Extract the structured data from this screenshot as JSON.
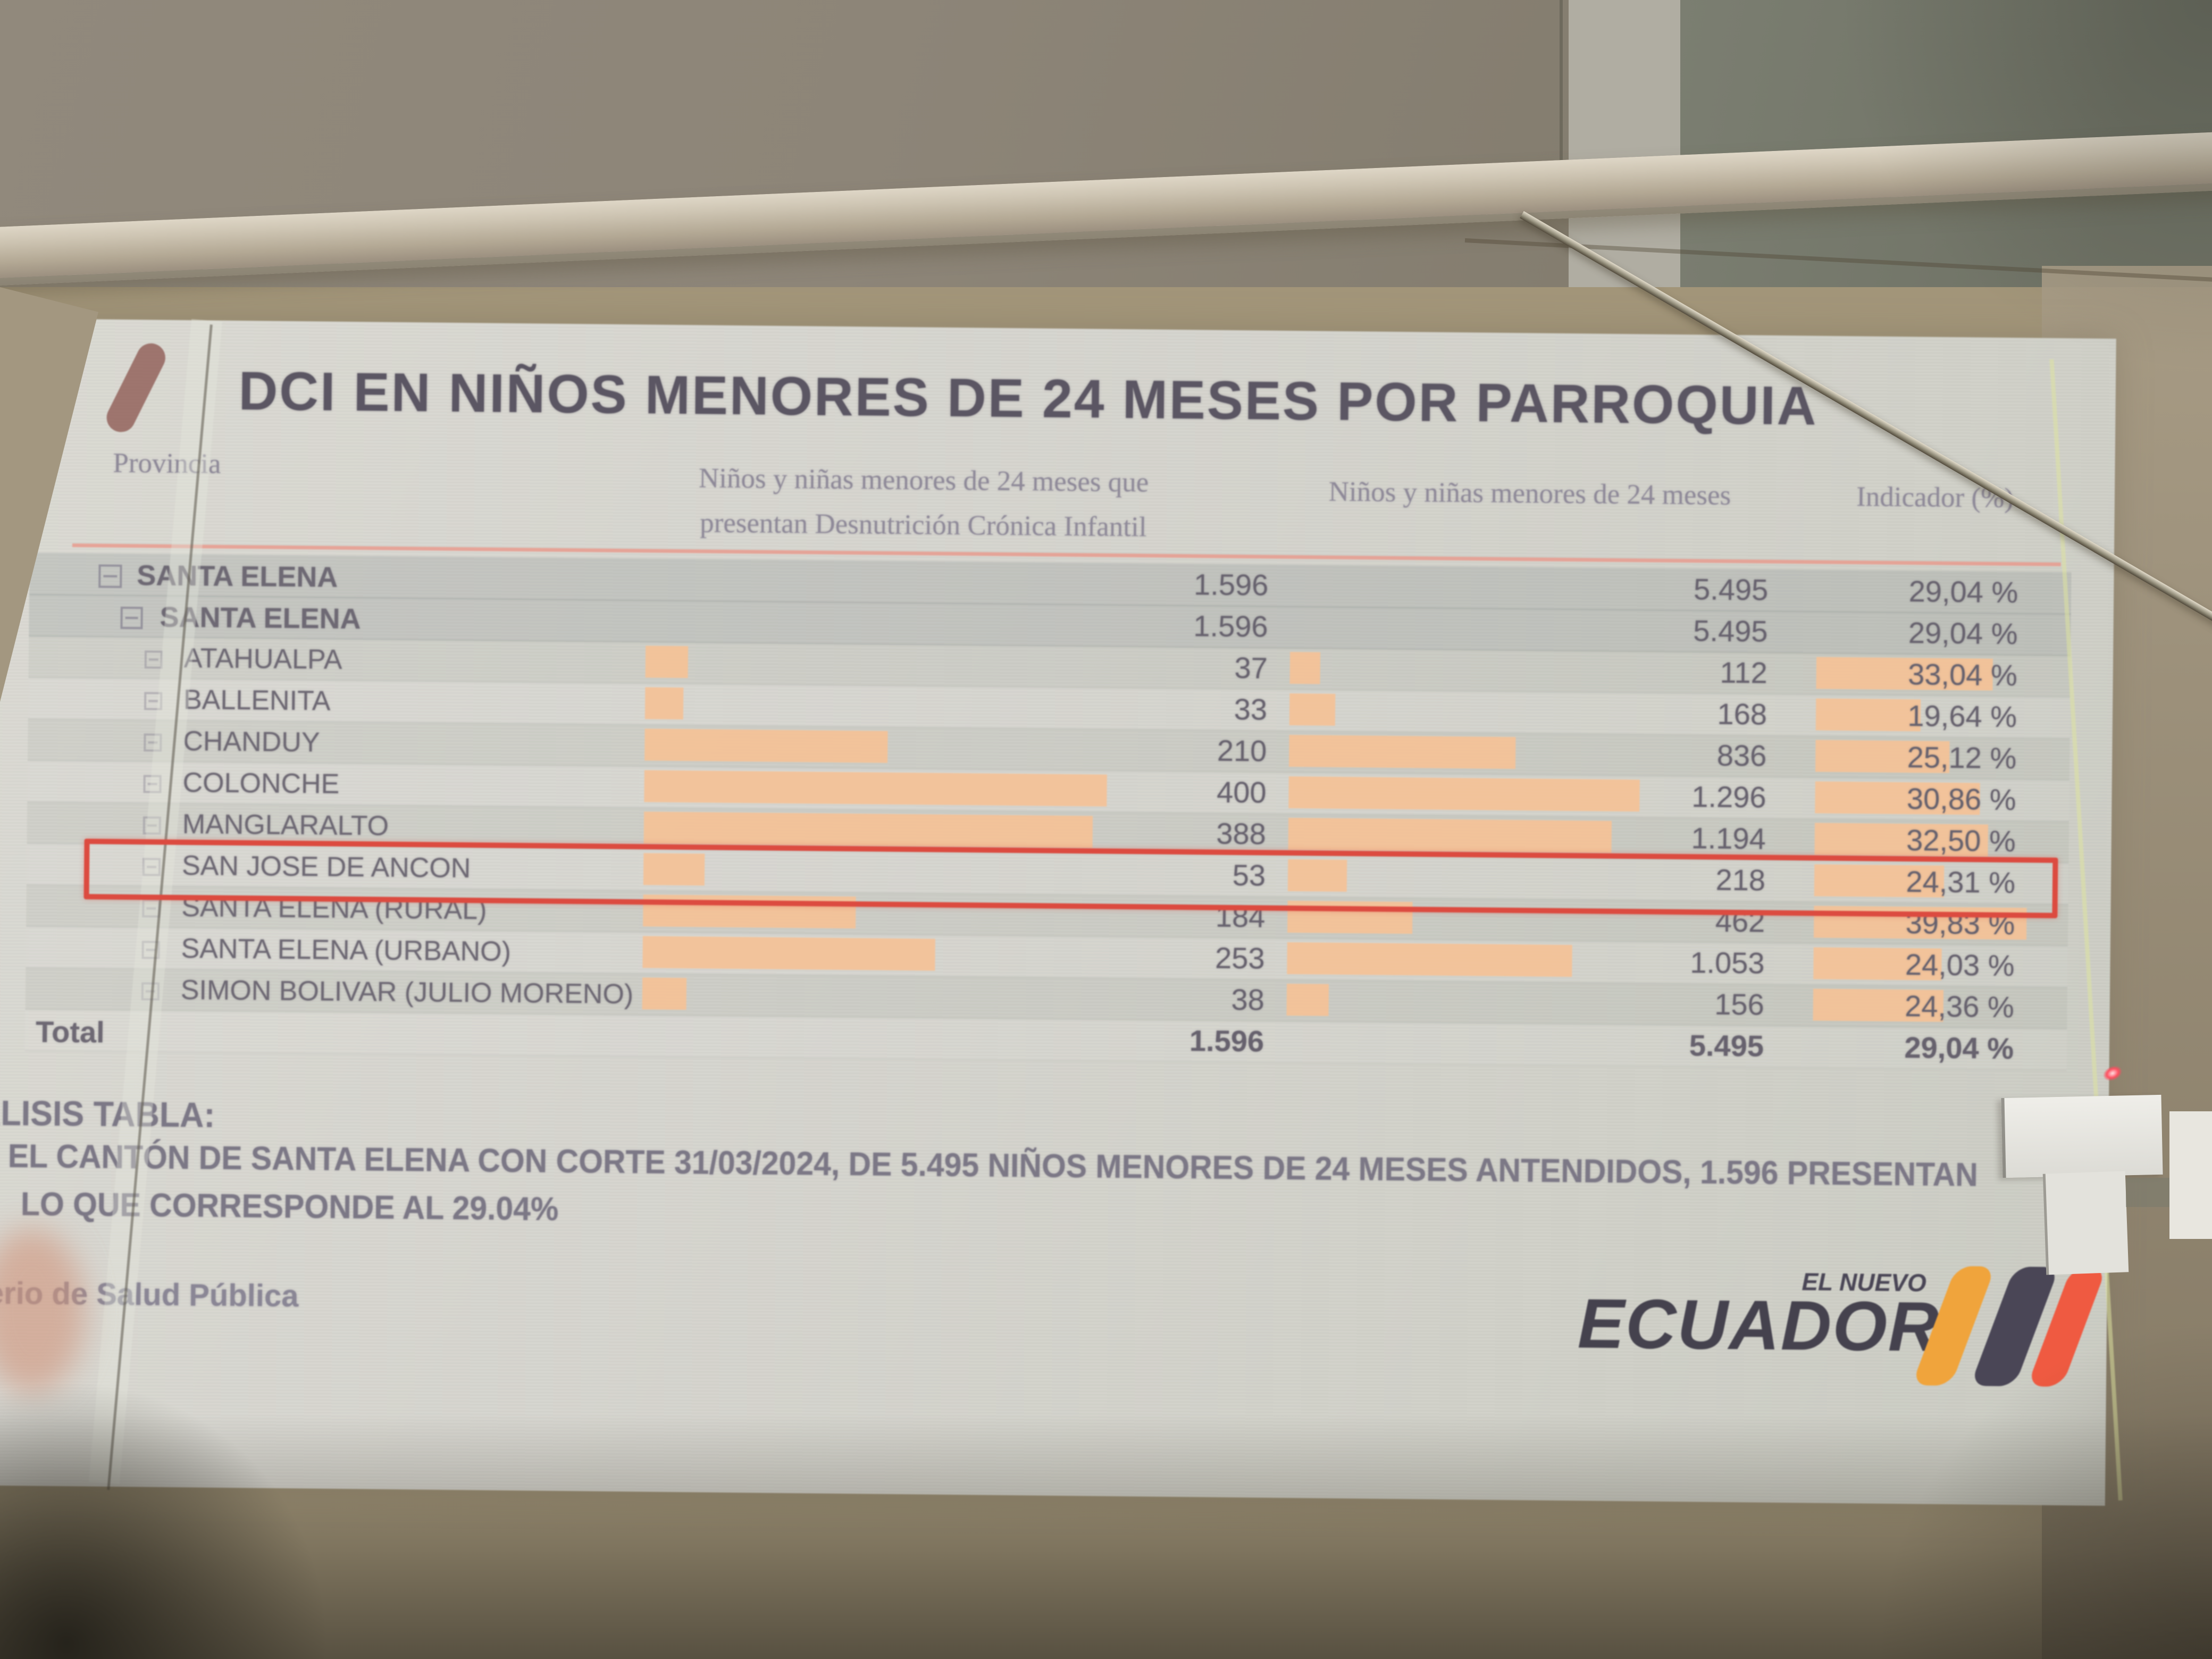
{
  "slide": {
    "title": "DCI EN NIÑOS MENORES DE 24 MESES POR PARROQUIA",
    "table": {
      "headers": {
        "provincia": "Provincia",
        "dci_line1": "Niños y niñas menores de 24 meses que",
        "dci_line2": "presentan Desnutrición Crónica Infantil",
        "atendidos": "Niños y niñas menores de 24 meses",
        "indicador": "Indicador (%)"
      },
      "rows": [
        {
          "label": "SANTA ELENA",
          "level": 1,
          "dci": "1.596",
          "dci_val": 1596,
          "atendidos": "5.495",
          "atendidos_val": 5495,
          "indicador": "29,04 %",
          "indicador_val": 29.04,
          "bars": false,
          "highlight": false
        },
        {
          "label": "SANTA ELENA",
          "level": 2,
          "dci": "1.596",
          "dci_val": 1596,
          "atendidos": "5.495",
          "atendidos_val": 5495,
          "indicador": "29,04 %",
          "indicador_val": 29.04,
          "bars": false,
          "highlight": false
        },
        {
          "label": "ATAHUALPA",
          "level": 3,
          "dci": "37",
          "dci_val": 37,
          "atendidos": "112",
          "atendidos_val": 112,
          "indicador": "33,04 %",
          "indicador_val": 33.04,
          "bars": true,
          "highlight": false
        },
        {
          "label": "BALLENITA",
          "level": 3,
          "dci": "33",
          "dci_val": 33,
          "atendidos": "168",
          "atendidos_val": 168,
          "indicador": "19,64 %",
          "indicador_val": 19.64,
          "bars": true,
          "highlight": false
        },
        {
          "label": "CHANDUY",
          "level": 3,
          "dci": "210",
          "dci_val": 210,
          "atendidos": "836",
          "atendidos_val": 836,
          "indicador": "25,12 %",
          "indicador_val": 25.12,
          "bars": true,
          "highlight": false
        },
        {
          "label": "COLONCHE",
          "level": 3,
          "dci": "400",
          "dci_val": 400,
          "atendidos": "1.296",
          "atendidos_val": 1296,
          "indicador": "30,86 %",
          "indicador_val": 30.86,
          "bars": true,
          "highlight": false
        },
        {
          "label": "MANGLARALTO",
          "level": 3,
          "dci": "388",
          "dci_val": 388,
          "atendidos": "1.194",
          "atendidos_val": 1194,
          "indicador": "32,50 %",
          "indicador_val": 32.5,
          "bars": true,
          "highlight": false
        },
        {
          "label": "SAN JOSE DE ANCON",
          "level": 3,
          "dci": "53",
          "dci_val": 53,
          "atendidos": "218",
          "atendidos_val": 218,
          "indicador": "24,31 %",
          "indicador_val": 24.31,
          "bars": true,
          "highlight": true
        },
        {
          "label": "SANTA ELENA (RURAL)",
          "level": 3,
          "dci": "184",
          "dci_val": 184,
          "atendidos": "462",
          "atendidos_val": 462,
          "indicador": "39,83 %",
          "indicador_val": 39.83,
          "bars": true,
          "highlight": false
        },
        {
          "label": "SANTA ELENA (URBANO)",
          "level": 3,
          "dci": "253",
          "dci_val": 253,
          "atendidos": "1.053",
          "atendidos_val": 1053,
          "indicador": "24,03 %",
          "indicador_val": 24.03,
          "bars": true,
          "highlight": false
        },
        {
          "label": "SIMON BOLIVAR (JULIO MORENO)",
          "level": 3,
          "dci": "38",
          "dci_val": 38,
          "atendidos": "156",
          "atendidos_val": 156,
          "indicador": "24,36 %",
          "indicador_val": 24.36,
          "bars": true,
          "highlight": false
        },
        {
          "label": "Total",
          "level": 0,
          "dci": "1.596",
          "dci_val": 1596,
          "atendidos": "5.495",
          "atendidos_val": 5495,
          "indicador": "29,04 %",
          "indicador_val": 29.04,
          "bars": false,
          "highlight": false
        }
      ]
    },
    "analysis": {
      "heading": "ANÁLISIS TABLA:",
      "line1": "EL CANTÓN DE SANTA ELENA CON CORTE 31/03/2024, DE 5.495 NIÑOS MENORES DE 24 MESES ANTENDIDOS, 1.596 PRESENTAN",
      "line2": "LO QUE CORRESPONDE AL 29.04%"
    },
    "footer": {
      "ministry": "Ministerio de Salud Pública"
    },
    "brand": {
      "tagline": "EL NUEVO",
      "name": "ECUADOR"
    }
  },
  "colors": {
    "data_bar": "#f3c298",
    "highlight_border": "#dc4b40",
    "header_separator": "#e79b8e",
    "brand_stripe_yellow": "#f0a43c",
    "brand_stripe_navy": "#4a4656",
    "brand_stripe_red": "#ef5a41",
    "laser_dot": "#ff4d5e"
  },
  "chart_data": {
    "type": "table",
    "title": "DCI EN NIÑOS MENORES DE 24 MESES POR PARROQUIA",
    "columns": [
      "Provincia",
      "Niños y niñas menores de 24 meses que presentan Desnutrición Crónica Infantil",
      "Niños y niñas menores de 24 meses",
      "Indicador (%)"
    ],
    "rows": [
      [
        "SANTA ELENA",
        1596,
        5495,
        29.04
      ],
      [
        "SANTA ELENA",
        1596,
        5495,
        29.04
      ],
      [
        "ATAHUALPA",
        37,
        112,
        33.04
      ],
      [
        "BALLENITA",
        33,
        168,
        19.64
      ],
      [
        "CHANDUY",
        210,
        836,
        25.12
      ],
      [
        "COLONCHE",
        400,
        1296,
        30.86
      ],
      [
        "MANGLARALTO",
        388,
        1194,
        32.5
      ],
      [
        "SAN JOSE DE ANCON",
        53,
        218,
        24.31
      ],
      [
        "SANTA ELENA (RURAL)",
        184,
        462,
        39.83
      ],
      [
        "SANTA ELENA (URBANO)",
        253,
        1053,
        24.03
      ],
      [
        "SIMON BOLIVAR (JULIO MORENO)",
        38,
        156,
        24.36
      ],
      [
        "Total",
        1596,
        5495,
        29.04
      ]
    ],
    "bar_scale_max": {
      "dci": 400,
      "atendidos": 1296,
      "indicador": 39.83
    },
    "highlighted_row": "SAN JOSE DE ANCON",
    "legend_position": "none",
    "grid": false
  }
}
